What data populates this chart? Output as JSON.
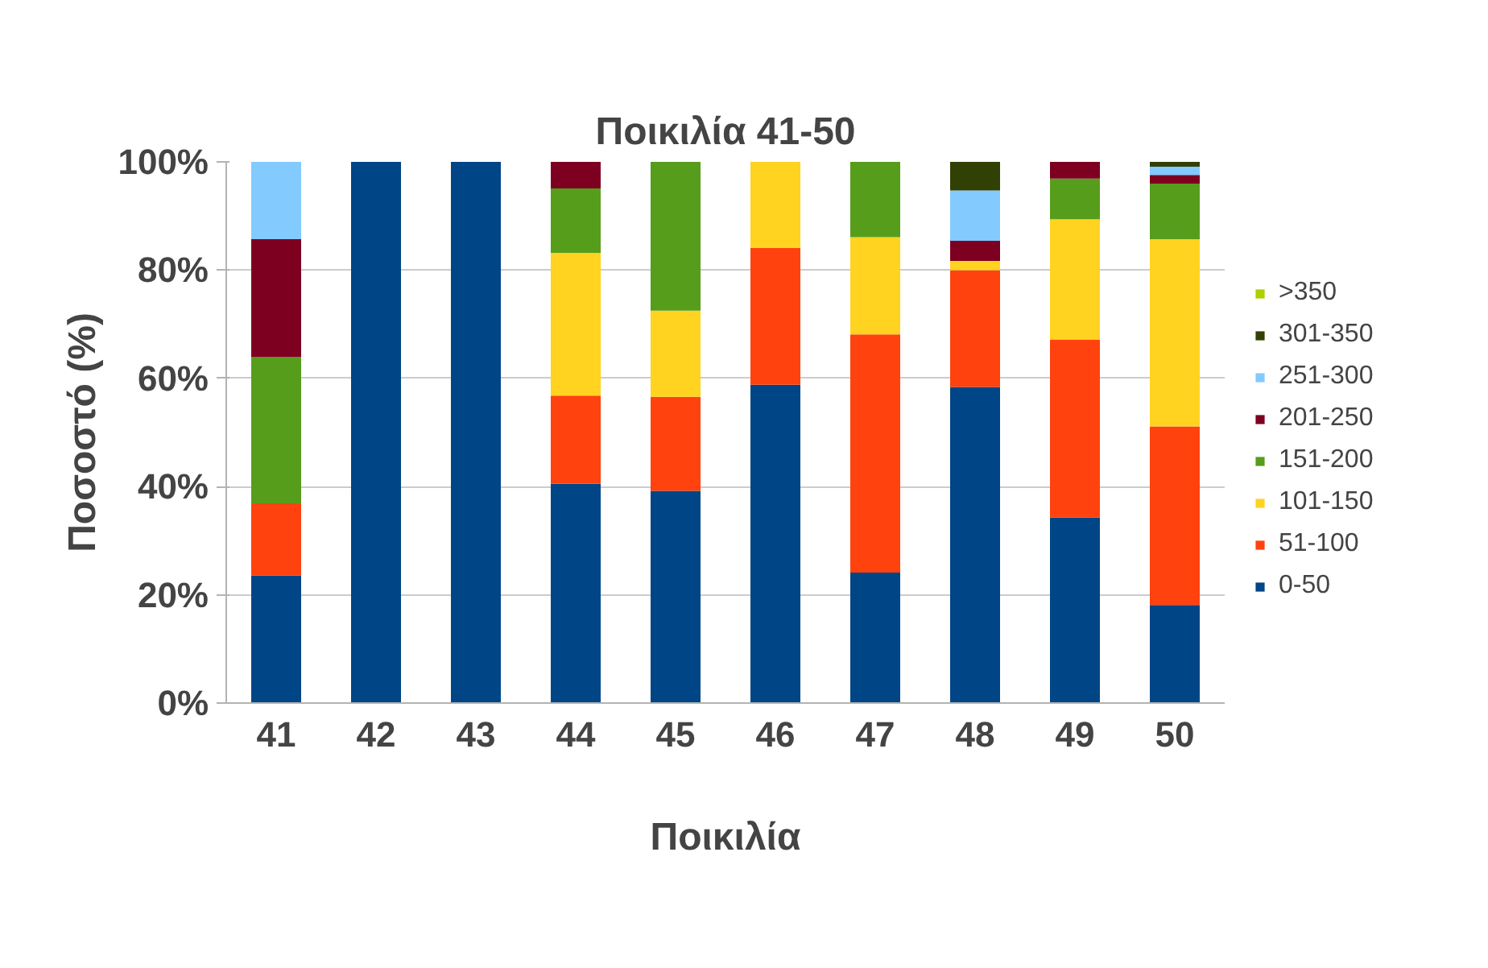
{
  "chart_data": {
    "type": "bar",
    "stacked": true,
    "title": "Ποικιλία 41-50",
    "xlabel": "Ποικιλία",
    "ylabel": "Ποσοστό (%)",
    "categories": [
      "41",
      "42",
      "43",
      "44",
      "45",
      "46",
      "47",
      "48",
      "49",
      "50"
    ],
    "series": [
      {
        "name": "0-50",
        "color": "#004586",
        "values": [
          23.6,
          100,
          100,
          40.5,
          39.2,
          58.8,
          24.1,
          58.4,
          34.3,
          18.1
        ]
      },
      {
        "name": "51-100",
        "color": "#ff420e",
        "values": [
          13.3,
          0,
          0,
          16.3,
          17.4,
          25.3,
          44.0,
          21.6,
          32.9,
          33.0
        ]
      },
      {
        "name": "101-150",
        "color": "#ffd320",
        "values": [
          0,
          0,
          0,
          26.4,
          15.9,
          15.9,
          18.0,
          1.7,
          22.2,
          34.6
        ]
      },
      {
        "name": "151-200",
        "color": "#579d1c",
        "values": [
          27.0,
          0,
          0,
          11.9,
          27.5,
          0,
          13.9,
          0,
          7.5,
          10.3
        ]
      },
      {
        "name": "201-250",
        "color": "#7e0021",
        "values": [
          21.8,
          0,
          0,
          4.9,
          0,
          0,
          0,
          3.7,
          3.1,
          1.6
        ]
      },
      {
        "name": "251-300",
        "color": "#83caff",
        "values": [
          14.3,
          0,
          0,
          0,
          0,
          0,
          0,
          9.3,
          0,
          1.5
        ]
      },
      {
        "name": "301-350",
        "color": "#314004",
        "values": [
          0,
          0,
          0,
          0,
          0,
          0,
          0,
          5.3,
          0,
          0.9
        ]
      },
      {
        "name": ">350",
        "color": "#aecf00",
        "values": [
          0,
          0,
          0,
          0,
          0,
          0,
          0,
          0,
          0,
          0
        ]
      }
    ],
    "ylim": [
      0,
      100
    ],
    "yticks": [
      {
        "value": 0,
        "label": "0%"
      },
      {
        "value": 20,
        "label": "20%"
      },
      {
        "value": 40,
        "label": "40%"
      },
      {
        "value": 60,
        "label": "60%"
      },
      {
        "value": 80,
        "label": "80%"
      },
      {
        "value": 100,
        "label": "100%"
      }
    ],
    "grid": "y",
    "legend": "right"
  }
}
